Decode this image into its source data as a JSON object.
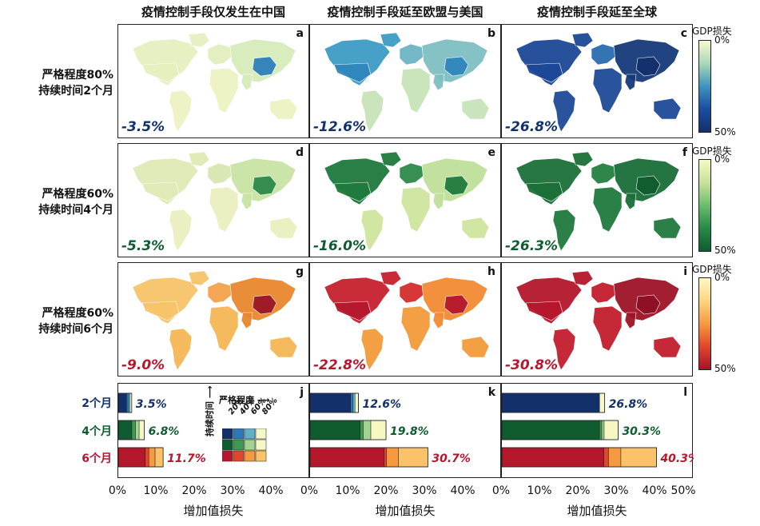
{
  "column_titles": [
    "疫情控制手段仅发生在中国",
    "疫情控制手段延至欧盟与美国",
    "疫情控制手段延至全球"
  ],
  "row_labels": [
    {
      "line1": "严格程度80%",
      "line2": "持续时间2个月"
    },
    {
      "line1": "严格程度60%",
      "line2": "持续时间4个月"
    },
    {
      "line1": "严格程度60%",
      "line2": "持续时间6个月"
    }
  ],
  "panels": [
    {
      "letter": "a",
      "value": "-3.5%"
    },
    {
      "letter": "b",
      "value": "-12.6%"
    },
    {
      "letter": "c",
      "value": "-26.8%"
    },
    {
      "letter": "d",
      "value": "-5.3%"
    },
    {
      "letter": "e",
      "value": "-16.0%"
    },
    {
      "letter": "f",
      "value": "-26.3%"
    },
    {
      "letter": "g",
      "value": "-9.0%"
    },
    {
      "letter": "h",
      "value": "-22.8%"
    },
    {
      "letter": "i",
      "value": "-30.8%"
    }
  ],
  "colorbar": {
    "title": "GDP损失",
    "low": "0%",
    "high": "50%"
  },
  "colors": {
    "blue": "#13306b",
    "green": "#0f5c30",
    "red": "#b5172d",
    "blue_light": "#f5f7c8",
    "green_light": "#f7f7c4",
    "red_light": "#fff7c2"
  },
  "bar_letters": [
    "j",
    "k",
    "l"
  ],
  "duration_labels": [
    "2个月",
    "4个月",
    "6个月"
  ],
  "legend": {
    "severity_title": "严格程度",
    "duration_title": "持续时间",
    "severity_levels": [
      "20%",
      "40%",
      "60%",
      "80%"
    ]
  },
  "xaxis": {
    "label": "增加值损失",
    "ticks": [
      "0%",
      "10%",
      "20%",
      "30%",
      "40%"
    ],
    "last_tick": "50%"
  },
  "chart_data": {
    "type": "bar",
    "title": "增加值损失",
    "xlabel": "增加值损失",
    "xlim": [
      0,
      50
    ],
    "categories": [
      "2个月",
      "4个月",
      "6个月"
    ],
    "series": [
      {
        "name": "疫情控制手段仅发生在中国",
        "values": [
          3.5,
          6.8,
          11.7
        ],
        "labels": [
          "3.5%",
          "6.8%",
          "11.7%"
        ]
      },
      {
        "name": "疫情控制手段延至欧盟与美国",
        "values": [
          12.6,
          19.8,
          30.7
        ],
        "labels": [
          "12.6%",
          "19.8%",
          "30.7%"
        ]
      },
      {
        "name": "疫情控制手段延至全球",
        "values": [
          26.8,
          30.3,
          40.3
        ],
        "labels": [
          "26.8%",
          "30.3%",
          "40.3%"
        ]
      }
    ]
  }
}
